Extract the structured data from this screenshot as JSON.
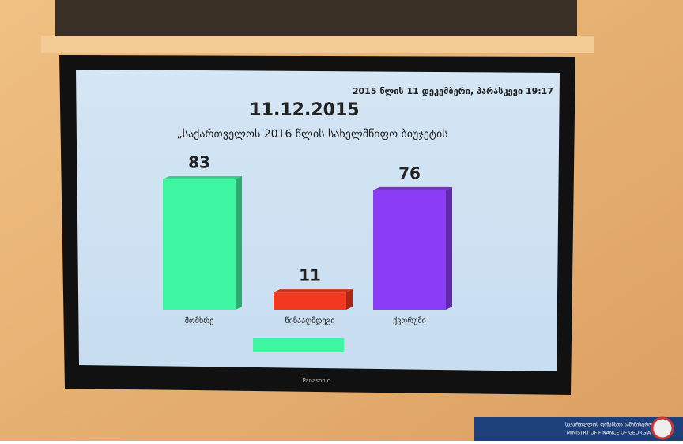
{
  "chart_data": {
    "type": "bar",
    "header": "2015 წლის 11 დეკემბერი, პარასკევი 19:17",
    "title": "11.12.2015",
    "subtitle": "„საქართველოს 2016 წლის სახელმწიფო ბიუჯეტის",
    "categories": [
      "მომხრე",
      "წინააღმდეგი",
      "ქვორუმი"
    ],
    "values": [
      83,
      11,
      76
    ],
    "colors": [
      "#3ef5a2",
      "#f2381f",
      "#8a3cf6"
    ]
  },
  "monitor_brand": "Panasonic",
  "watermark": {
    "line1": "საქართველოს ფინანსთა სამინისტრო",
    "line2": "MINISTRY OF FINANCE OF GEORGIA"
  }
}
